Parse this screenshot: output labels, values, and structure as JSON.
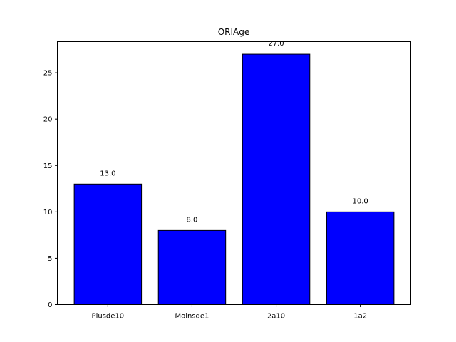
{
  "chart_data": {
    "type": "bar",
    "title": "ORIAge",
    "xlabel": "",
    "ylabel": "",
    "categories": [
      "Plusde10",
      "Moinsde1",
      "2a10",
      "1a2"
    ],
    "values": [
      13.0,
      8.0,
      27.0,
      10.0
    ],
    "value_labels": [
      "13.0",
      "8.0",
      "27.0",
      "10.0"
    ],
    "ylim": [
      0,
      28.35
    ],
    "yticks": [
      0,
      5,
      10,
      15,
      20,
      25
    ],
    "ytick_labels": [
      "0",
      "5",
      "10",
      "15",
      "20",
      "25"
    ],
    "grid": false,
    "legend": "none",
    "colors": {
      "bar_fill": "#0000ff",
      "bar_edge": "#000000",
      "axes": "#000000"
    }
  }
}
